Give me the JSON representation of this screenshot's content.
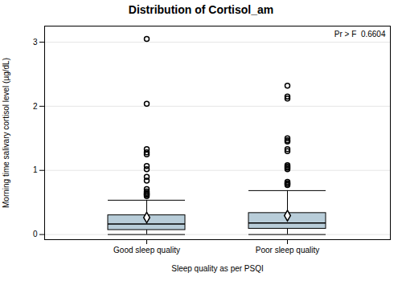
{
  "chart_data": {
    "type": "box",
    "title": "Distribution of Cortisol_am",
    "xlabel": "Sleep quality as per PSQI",
    "ylabel": "Morning time salivary cortisol level (µg/dL)",
    "categories": [
      "Good sleep quality",
      "Poor sleep quality"
    ],
    "boxes": [
      {
        "q1": 0.07,
        "median": 0.165,
        "q3": 0.3,
        "mean": 0.265,
        "whisker_low": 0.0,
        "whisker_high": 0.535,
        "outliers": [
          0.6,
          0.62,
          0.63,
          0.65,
          0.67,
          0.71,
          0.84,
          0.9,
          1.02,
          1.07,
          1.25,
          1.28,
          1.33,
          2.04,
          3.05
        ]
      },
      {
        "q1": 0.09,
        "median": 0.18,
        "q3": 0.335,
        "mean": 0.295,
        "whisker_low": 0.0,
        "whisker_high": 0.685,
        "outliers": [
          0.77,
          0.79,
          0.8,
          0.82,
          1.02,
          1.04,
          1.06,
          1.08,
          1.3,
          1.33,
          1.45,
          1.47,
          1.5,
          2.12,
          2.15,
          2.32
        ]
      }
    ],
    "annotation": "Pr > F  0.6604",
    "ylim": [
      -0.08,
      3.25
    ],
    "yticks": [
      0,
      1,
      2,
      3
    ],
    "color": "#b8cdd9",
    "grid": true
  }
}
